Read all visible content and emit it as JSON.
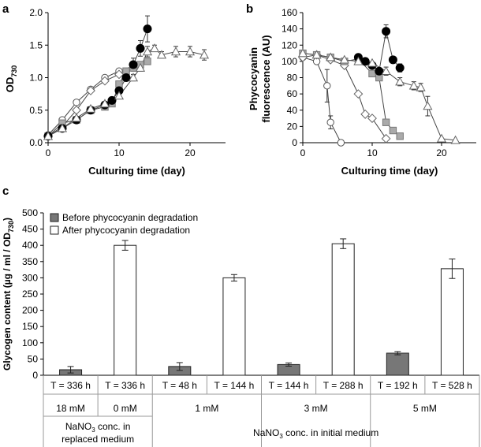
{
  "panel_labels": {
    "a": "a",
    "b": "b",
    "c": "c"
  },
  "chart_data": [
    {
      "panel": "a",
      "type": "line",
      "xlabel": "Culturing time (day)",
      "ylabel_main": "OD",
      "ylabel_sub": "730",
      "xlim": [
        0,
        25
      ],
      "ylim": [
        0,
        2.0
      ],
      "xticks": [
        0,
        10,
        20
      ],
      "yticks": [
        0.0,
        0.5,
        1.0,
        1.5,
        2.0
      ],
      "ytick_labels": [
        "0.0",
        "0.5",
        "1.0",
        "1.5",
        "2.0"
      ],
      "series": [
        {
          "marker": "open-circle",
          "x": [
            0,
            2,
            4,
            6,
            8,
            10
          ],
          "y": [
            0.12,
            0.35,
            0.62,
            0.82,
            1.0,
            1.1
          ]
        },
        {
          "marker": "open-diamond",
          "x": [
            0,
            2,
            4,
            6,
            8,
            10,
            12
          ],
          "y": [
            0.1,
            0.25,
            0.5,
            0.8,
            0.95,
            1.05,
            1.2
          ]
        },
        {
          "marker": "gray-square",
          "x": [
            0,
            2,
            4,
            6,
            8,
            9,
            10,
            11,
            12,
            13,
            14
          ],
          "y": [
            0.1,
            0.3,
            0.35,
            0.5,
            0.55,
            0.6,
            0.9,
            1.1,
            1.15,
            1.2,
            1.25
          ]
        },
        {
          "marker": "filled-circle",
          "x": [
            0,
            2,
            4,
            6,
            8,
            9,
            10,
            11,
            12,
            13,
            14
          ],
          "y": [
            0.1,
            0.22,
            0.35,
            0.5,
            0.58,
            0.65,
            0.8,
            1.0,
            1.2,
            1.45,
            1.75
          ],
          "yerr": [
            0,
            0,
            0,
            0,
            0,
            0,
            0,
            0,
            0.1,
            0.12,
            0.2
          ]
        },
        {
          "marker": "open-triangle",
          "x": [
            0,
            2,
            4,
            6,
            8,
            10,
            12,
            13,
            14,
            15,
            16,
            18,
            20,
            22
          ],
          "y": [
            0.1,
            0.22,
            0.38,
            0.52,
            0.6,
            0.72,
            1.0,
            1.15,
            1.4,
            1.45,
            1.35,
            1.4,
            1.4,
            1.35
          ],
          "yerr": [
            0,
            0,
            0,
            0,
            0,
            0,
            0.05,
            0.05,
            0.08,
            0.05,
            0.05,
            0.08,
            0.08,
            0.08
          ]
        }
      ]
    },
    {
      "panel": "b",
      "type": "line",
      "xlabel": "Culturing time (day)",
      "ylabel_lines": [
        "Phycocyanin",
        "fluorescence (AU)"
      ],
      "xlim": [
        0,
        25
      ],
      "ylim": [
        0,
        160
      ],
      "xticks": [
        0,
        10,
        20
      ],
      "yticks": [
        0,
        20,
        40,
        60,
        80,
        100,
        120,
        140,
        160
      ],
      "series": [
        {
          "marker": "open-circle",
          "x": [
            0,
            2,
            3.5,
            4,
            5.5
          ],
          "y": [
            105,
            100,
            70,
            25,
            0
          ],
          "yerr": [
            0,
            0,
            20,
            8,
            0
          ]
        },
        {
          "marker": "open-diamond",
          "x": [
            0,
            2,
            4,
            6,
            8,
            9,
            10,
            12
          ],
          "y": [
            105,
            108,
            102,
            95,
            60,
            35,
            30,
            5
          ]
        },
        {
          "marker": "gray-square",
          "x": [
            0,
            2,
            4,
            6,
            8,
            10,
            11,
            12,
            13,
            14
          ],
          "y": [
            110,
            108,
            105,
            100,
            103,
            85,
            80,
            25,
            15,
            8
          ]
        },
        {
          "marker": "filled-circle",
          "x": [
            8,
            9,
            10,
            11,
            12,
            13,
            14
          ],
          "y": [
            105,
            100,
            95,
            88,
            137,
            102,
            92
          ],
          "yerr": [
            0,
            0,
            0,
            0,
            8,
            0,
            5
          ]
        },
        {
          "marker": "open-triangle",
          "x": [
            0,
            2,
            4,
            6,
            8,
            10,
            12,
            14,
            16,
            17,
            18,
            20,
            22
          ],
          "y": [
            110,
            108,
            105,
            102,
            100,
            98,
            88,
            75,
            70,
            68,
            45,
            5,
            3
          ],
          "yerr": [
            0,
            0,
            0,
            0,
            0,
            0,
            5,
            5,
            5,
            5,
            12,
            0,
            0
          ]
        }
      ]
    },
    {
      "panel": "c",
      "type": "bar",
      "ylabel": "Glycogen content (µg / ml / OD",
      "ylabel_sub": "730",
      "ylabel_tail": ")",
      "ylim": [
        0,
        500
      ],
      "yticks": [
        0,
        50,
        100,
        150,
        200,
        250,
        300,
        350,
        400,
        450,
        500
      ],
      "legend": [
        "Before phycocyanin degradation",
        "After phycocyanin degradation"
      ],
      "categories": [
        "T = 336 h",
        "T = 336 h",
        "T = 48 h",
        "T = 144 h",
        "T = 144 h",
        "T = 288 h",
        "T = 192 h",
        "T = 528 h"
      ],
      "values": [
        17,
        400,
        27,
        300,
        33,
        405,
        68,
        328
      ],
      "yerr": [
        10,
        15,
        12,
        10,
        5,
        15,
        5,
        30
      ],
      "kinds": [
        "before",
        "after",
        "before",
        "after",
        "before",
        "after",
        "before",
        "after"
      ],
      "groups": [
        "18 mM",
        "0 mM",
        "1 mM",
        "3 mM",
        "5 mM"
      ],
      "group_spans": [
        [
          0,
          0
        ],
        [
          1,
          1
        ],
        [
          2,
          3
        ],
        [
          4,
          5
        ],
        [
          6,
          7
        ]
      ],
      "section_replaced": [
        "NaNO",
        "3",
        " conc. in",
        "replaced medium"
      ],
      "section_initial": [
        "NaNO",
        "3",
        " conc. in initial medium"
      ]
    }
  ]
}
